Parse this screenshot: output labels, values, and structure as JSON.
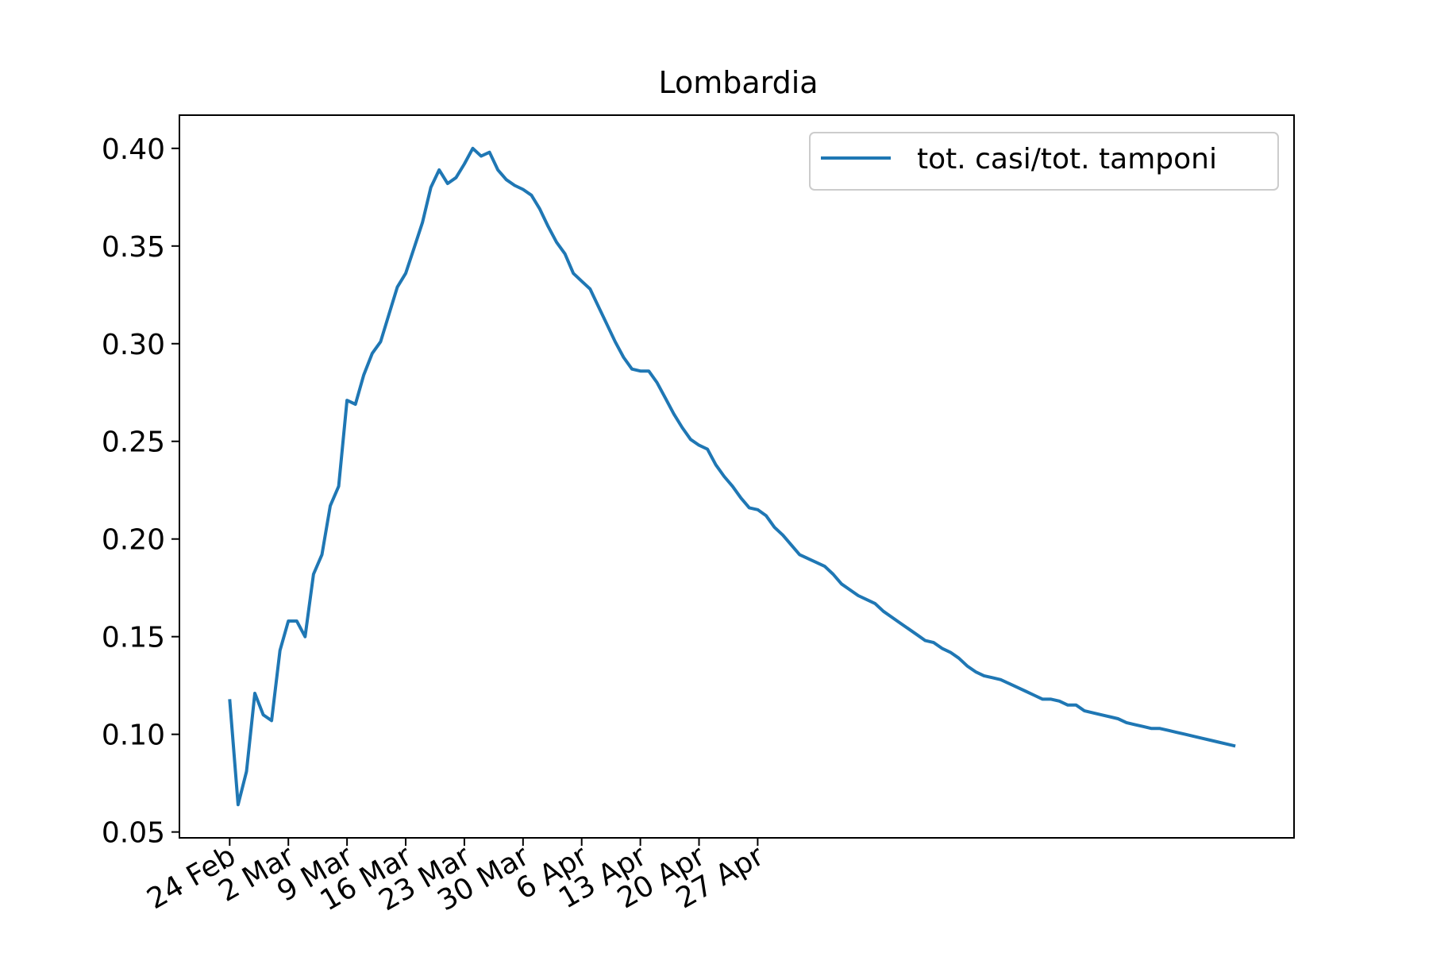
{
  "chart_data": {
    "type": "line",
    "title": "Lombardia",
    "xlabel": "",
    "ylabel": "",
    "x_tick_labels": [
      "24 Feb",
      "2 Mar",
      "9 Mar",
      "16 Mar",
      "23 Mar",
      "30 Mar",
      "6 Apr",
      "13 Apr",
      "20 Apr",
      "27 Apr"
    ],
    "x_start_date": "2020-02-24",
    "xlim_days": [
      -6,
      127
    ],
    "y_ticks": [
      "0.05",
      "0.10",
      "0.15",
      "0.20",
      "0.25",
      "0.30",
      "0.35",
      "0.40"
    ],
    "ylim": [
      0.047,
      0.417
    ],
    "grid": false,
    "legend_position": "upper right",
    "series": [
      {
        "name": "tot. casi/tot. tamponi",
        "color": "#1f77b4",
        "values": [
          0.118,
          0.064,
          0.081,
          0.121,
          0.11,
          0.107,
          0.143,
          0.158,
          0.158,
          0.15,
          0.182,
          0.192,
          0.217,
          0.227,
          0.271,
          0.269,
          0.284,
          0.295,
          0.301,
          0.315,
          0.329,
          0.336,
          0.349,
          0.362,
          0.38,
          0.389,
          0.382,
          0.385,
          0.392,
          0.4,
          0.396,
          0.398,
          0.389,
          0.384,
          0.381,
          0.379,
          0.376,
          0.369,
          0.36,
          0.352,
          0.346,
          0.336,
          0.332,
          0.328,
          0.319,
          0.31,
          0.301,
          0.293,
          0.287,
          0.286,
          0.286,
          0.28,
          0.272,
          0.264,
          0.257,
          0.251,
          0.248,
          0.246,
          0.238,
          0.232,
          0.227,
          0.221,
          0.216,
          0.215,
          0.212,
          0.206,
          0.202,
          0.197,
          0.192,
          0.19,
          0.188,
          0.186,
          0.182,
          0.177,
          0.174,
          0.171,
          0.169,
          0.167,
          0.163,
          0.16,
          0.157,
          0.154,
          0.151,
          0.148,
          0.147,
          0.144,
          0.142,
          0.139,
          0.135,
          0.132,
          0.13,
          0.129,
          0.128,
          0.126,
          0.124,
          0.122,
          0.12,
          0.118,
          0.118,
          0.117,
          0.115,
          0.115,
          0.112,
          0.111,
          0.11,
          0.109,
          0.108,
          0.106,
          0.105,
          0.104,
          0.103,
          0.103,
          0.102,
          0.101,
          0.1,
          0.099,
          0.098,
          0.097,
          0.096,
          0.095,
          0.094
        ]
      }
    ]
  }
}
